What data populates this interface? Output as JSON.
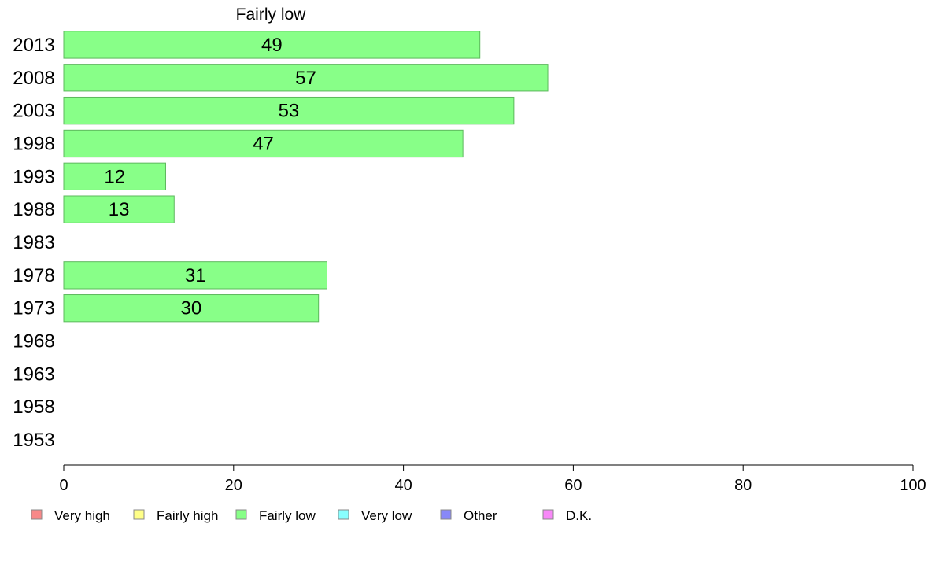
{
  "chart_data": {
    "type": "bar",
    "orientation": "horizontal",
    "title": "Fairly low",
    "categories": [
      "2013",
      "2008",
      "2003",
      "1998",
      "1993",
      "1988",
      "1983",
      "1978",
      "1973",
      "1968",
      "1963",
      "1958",
      "1953"
    ],
    "series": [
      {
        "name": "Fairly low",
        "color": "#88ff88",
        "values": [
          49,
          57,
          53,
          47,
          12,
          13,
          null,
          31,
          30,
          null,
          null,
          null,
          null
        ]
      }
    ],
    "xlim": [
      0,
      100
    ],
    "xticks": [
      0,
      20,
      40,
      60,
      80,
      100
    ],
    "xlabel": "",
    "ylabel": "",
    "grid": false,
    "legend_position": "bottom",
    "legend": [
      {
        "label": "Very high",
        "color": "#f88888"
      },
      {
        "label": "Fairly high",
        "color": "#ffff88"
      },
      {
        "label": "Fairly low",
        "color": "#88ff88"
      },
      {
        "label": "Very low",
        "color": "#88ffff"
      },
      {
        "label": "Other",
        "color": "#8888f8"
      },
      {
        "label": "D.K.",
        "color": "#f888f8"
      }
    ]
  }
}
